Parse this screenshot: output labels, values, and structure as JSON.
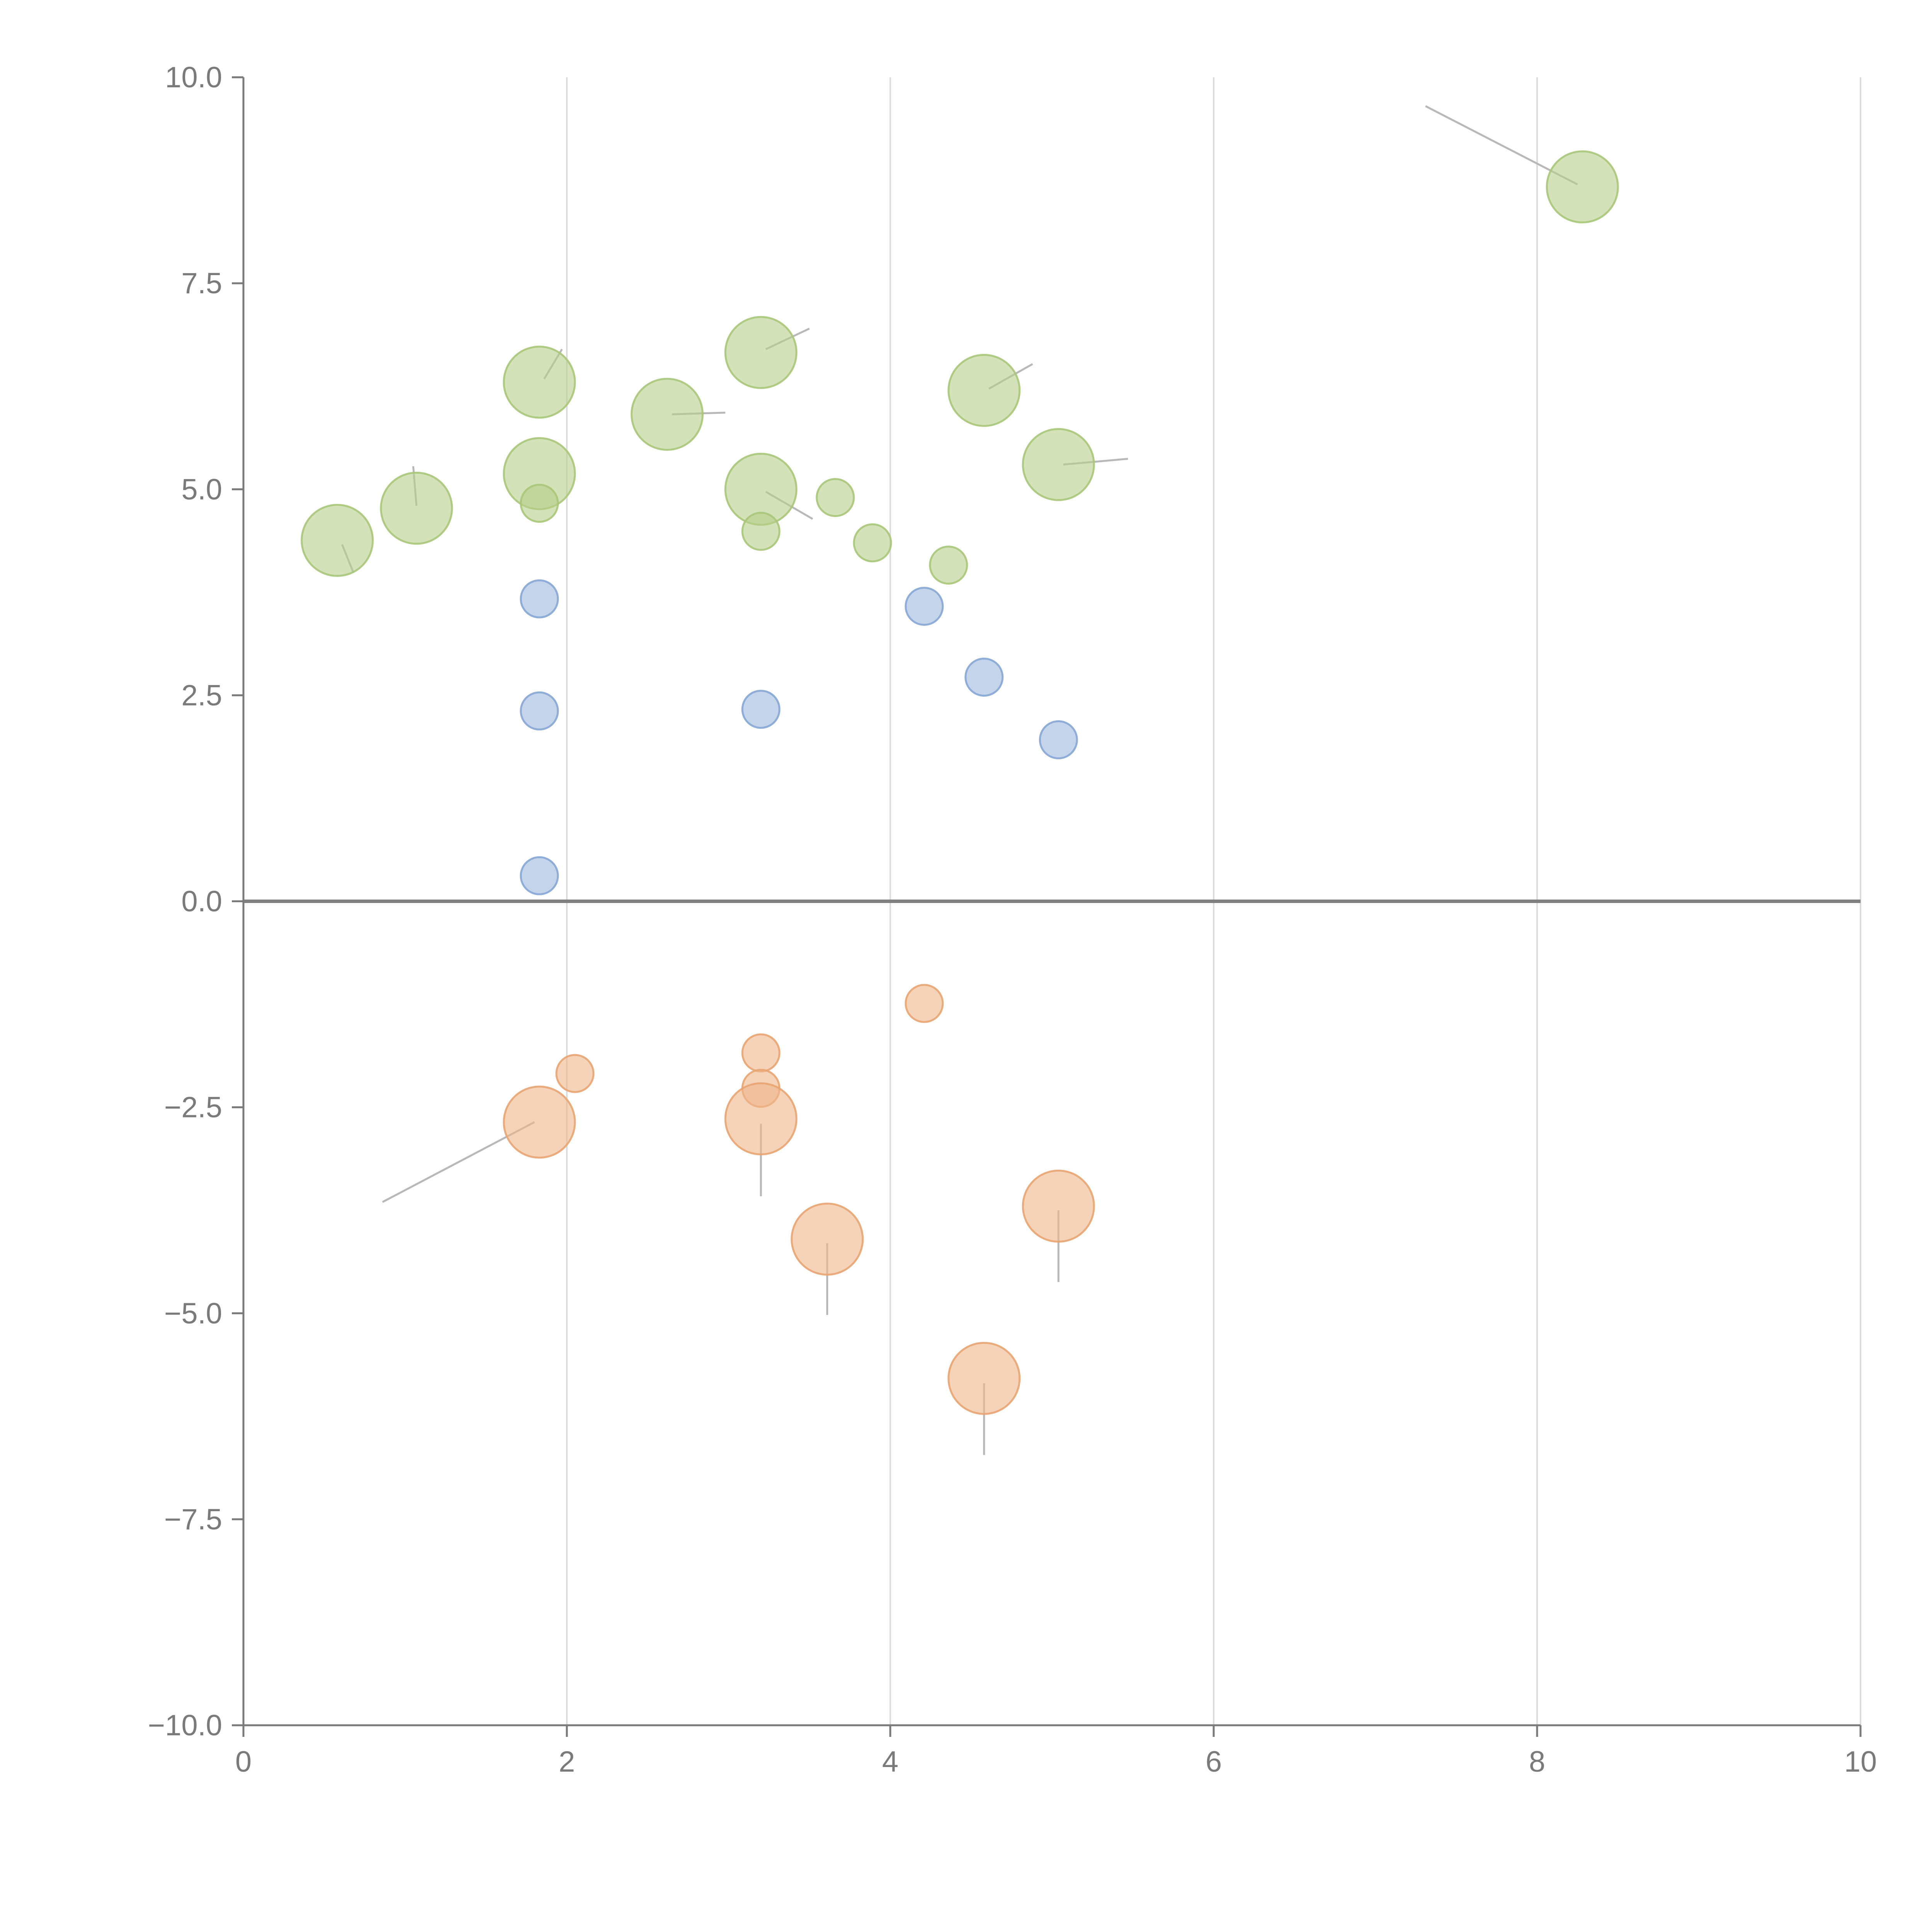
{
  "chart_data": {
    "type": "scatter",
    "title": "",
    "xlabel": "",
    "ylabel": "",
    "xlim": [
      0,
      10
    ],
    "ylim": [
      -10,
      10
    ],
    "x_ticks": [
      0,
      2,
      4,
      6,
      8,
      10
    ],
    "x_tick_labels": [
      "0",
      "2",
      "4",
      "6",
      "8",
      "10"
    ],
    "y_ticks": [
      -10,
      -7.5,
      -5,
      -2.5,
      0,
      2.5,
      5,
      7.5,
      10
    ],
    "y_tick_labels": [
      "−10.0",
      "−7.5",
      "−5.0",
      "−2.5",
      "0.0",
      "2.5",
      "5.0",
      "7.5",
      "10.0"
    ],
    "grid": "vertical",
    "reference_line_y": 0,
    "series": [
      {
        "name": "green",
        "color": "#b5cf88",
        "stroke": "#a9c67a",
        "points": [
          {
            "x": 0.58,
            "y": 4.38,
            "size": 3
          },
          {
            "x": 1.07,
            "y": 4.77,
            "size": 3
          },
          {
            "x": 1.83,
            "y": 6.3,
            "size": 3
          },
          {
            "x": 1.83,
            "y": 5.19,
            "size": 3
          },
          {
            "x": 1.83,
            "y": 4.83,
            "size": 1
          },
          {
            "x": 2.62,
            "y": 5.91,
            "size": 3
          },
          {
            "x": 3.2,
            "y": 6.66,
            "size": 3
          },
          {
            "x": 3.2,
            "y": 5.0,
            "size": 3
          },
          {
            "x": 3.2,
            "y": 4.49,
            "size": 1
          },
          {
            "x": 3.66,
            "y": 4.9,
            "size": 1
          },
          {
            "x": 3.89,
            "y": 4.35,
            "size": 1
          },
          {
            "x": 4.36,
            "y": 4.08,
            "size": 1
          },
          {
            "x": 4.58,
            "y": 6.2,
            "size": 3
          },
          {
            "x": 5.04,
            "y": 5.3,
            "size": 3
          },
          {
            "x": 8.28,
            "y": 8.67,
            "size": 3
          }
        ]
      },
      {
        "name": "blue",
        "color": "#9db8de",
        "stroke": "#86a6d4",
        "points": [
          {
            "x": 1.83,
            "y": 3.67,
            "size": 1
          },
          {
            "x": 1.83,
            "y": 2.31,
            "size": 1
          },
          {
            "x": 1.83,
            "y": 0.31,
            "size": 1
          },
          {
            "x": 3.2,
            "y": 2.33,
            "size": 1
          },
          {
            "x": 4.21,
            "y": 3.58,
            "size": 1
          },
          {
            "x": 4.58,
            "y": 2.72,
            "size": 1
          },
          {
            "x": 5.04,
            "y": 1.96,
            "size": 1
          }
        ]
      },
      {
        "name": "orange",
        "color": "#eeb68a",
        "stroke": "#e8a472",
        "points": [
          {
            "x": 1.83,
            "y": -2.68,
            "size": 3
          },
          {
            "x": 2.05,
            "y": -2.09,
            "size": 1
          },
          {
            "x": 3.2,
            "y": -1.84,
            "size": 1
          },
          {
            "x": 3.2,
            "y": -2.27,
            "size": 1
          },
          {
            "x": 3.2,
            "y": -2.64,
            "size": 3
          },
          {
            "x": 3.61,
            "y": -4.1,
            "size": 3
          },
          {
            "x": 4.21,
            "y": -1.24,
            "size": 1
          },
          {
            "x": 4.58,
            "y": -5.79,
            "size": 3
          },
          {
            "x": 5.04,
            "y": -3.7,
            "size": 3
          }
        ]
      }
    ],
    "leader_lines": [
      {
        "from": [
          8.25,
          8.7
        ],
        "to": [
          7.31,
          9.65
        ],
        "color": "#b8b8b8"
      },
      {
        "from": [
          1.8,
          -2.68
        ],
        "to": [
          0.86,
          -3.65
        ],
        "color": "#b8b8b8"
      },
      {
        "from": [
          3.2,
          -2.7
        ],
        "to": [
          3.2,
          -3.58
        ],
        "color": "#b8b8b8"
      },
      {
        "from": [
          3.61,
          -4.15
        ],
        "to": [
          3.61,
          -5.02
        ],
        "color": "#b8b8b8"
      },
      {
        "from": [
          4.58,
          -5.85
        ],
        "to": [
          4.58,
          -6.72
        ],
        "color": "#b8b8b8"
      },
      {
        "from": [
          5.04,
          -3.75
        ],
        "to": [
          5.04,
          -4.62
        ],
        "color": "#b8b8b8"
      },
      {
        "from": [
          0.61,
          4.33
        ],
        "to": [
          0.68,
          3.99
        ],
        "color": "#ffffff"
      },
      {
        "from": [
          1.07,
          4.8
        ],
        "to": [
          1.05,
          5.28
        ],
        "color": "#ffffff"
      },
      {
        "from": [
          1.86,
          6.34
        ],
        "to": [
          1.97,
          6.7
        ],
        "color": "#ffffff"
      },
      {
        "from": [
          2.65,
          5.91
        ],
        "to": [
          2.98,
          5.93
        ],
        "color": "#ffffff"
      },
      {
        "from": [
          3.23,
          6.7
        ],
        "to": [
          3.5,
          6.95
        ],
        "color": "#ffffff"
      },
      {
        "from": [
          3.23,
          4.97
        ],
        "to": [
          3.52,
          4.64
        ],
        "color": "#ffffff"
      },
      {
        "from": [
          4.61,
          6.22
        ],
        "to": [
          4.88,
          6.52
        ],
        "color": "#ffffff"
      },
      {
        "from": [
          5.07,
          5.3
        ],
        "to": [
          5.47,
          5.37
        ],
        "color": "#ffffff"
      }
    ]
  }
}
